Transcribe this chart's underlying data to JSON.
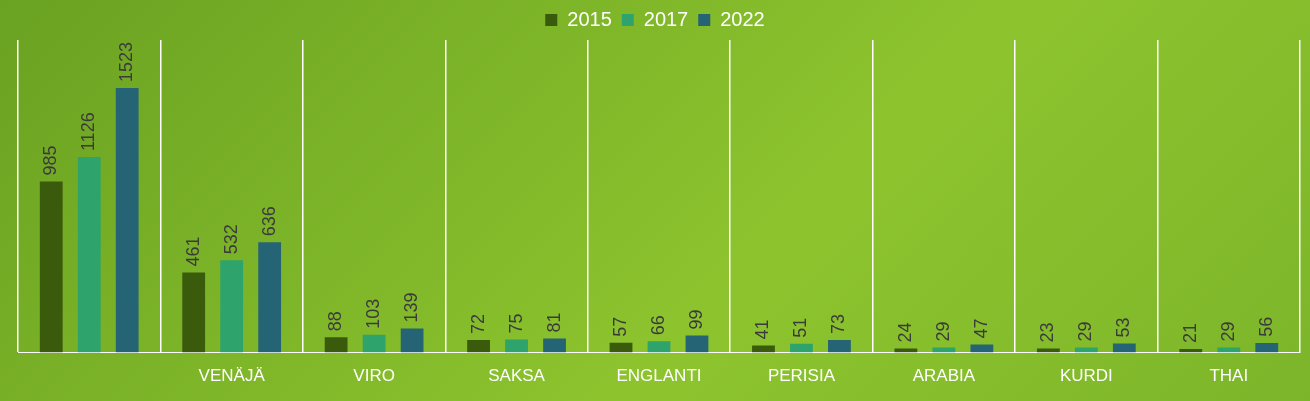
{
  "chart_data": {
    "type": "bar",
    "categories": [
      null,
      "VENÄJÄ",
      "VIRO",
      "SAKSA",
      "ENGLANTI",
      "PERISIA",
      "ARABIA",
      "KURDI",
      "THAI"
    ],
    "series": [
      {
        "name": "2015",
        "color": "#3a5a0c",
        "values": [
          985,
          461,
          88,
          72,
          57,
          41,
          24,
          23,
          21
        ]
      },
      {
        "name": "2017",
        "color": "#2ea36b",
        "values": [
          1126,
          532,
          103,
          75,
          66,
          51,
          29,
          29,
          29
        ]
      },
      {
        "name": "2022",
        "color": "#256475",
        "values": [
          1523,
          636,
          139,
          81,
          99,
          73,
          47,
          53,
          56
        ]
      }
    ],
    "data_labels": true,
    "grid": "x",
    "legend": "top",
    "relative": false
  }
}
